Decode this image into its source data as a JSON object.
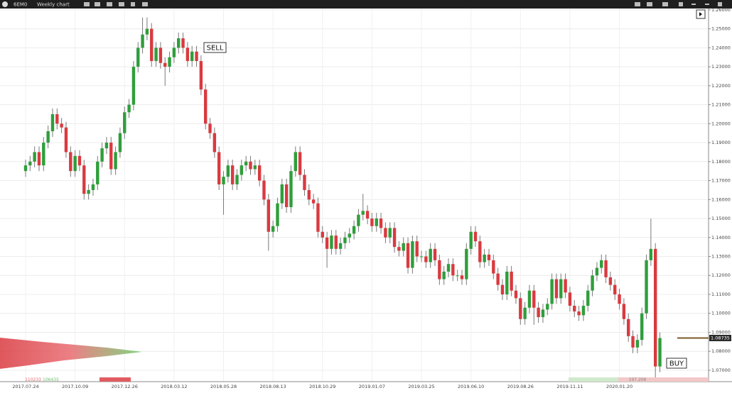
{
  "toolbar": {
    "symbol": "6EM0",
    "timeframe": "Weekly chart"
  },
  "chart_data": {
    "type": "candlestick",
    "categories": [
      "2017.07.24",
      null,
      null,
      null,
      null,
      null,
      null,
      null,
      null,
      null,
      null,
      "2017.10.09",
      null,
      null,
      null,
      null,
      null,
      null,
      null,
      null,
      null,
      null,
      "2017.12.26",
      null,
      null,
      null,
      null,
      null,
      null,
      null,
      null,
      null,
      null,
      "2018.03.12",
      null,
      null,
      null,
      null,
      null,
      null,
      null,
      null,
      null,
      null,
      "2018.05.28",
      null,
      null,
      null,
      null,
      null,
      null,
      null,
      null,
      null,
      null,
      "2018.08.13",
      null,
      null,
      null,
      null,
      null,
      null,
      null,
      null,
      null,
      null,
      "2018.10.29",
      null,
      null,
      null,
      null,
      null,
      null,
      null,
      null,
      null,
      null,
      "2019.01.07",
      null,
      null,
      null,
      null,
      null,
      null,
      null,
      null,
      null,
      null,
      "2019.03.25",
      null,
      null,
      null,
      null,
      null,
      null,
      null,
      null,
      null,
      null,
      "2019.06.10",
      null,
      null,
      null,
      null,
      null,
      null,
      null,
      null,
      null,
      null,
      "2019.08.26",
      null,
      null,
      null,
      null,
      null,
      null,
      null,
      null,
      null,
      null,
      "2019.11.11",
      null,
      null,
      null,
      null,
      null,
      null,
      null,
      null,
      null,
      null,
      "2020.01.20",
      null,
      null,
      null,
      null,
      null,
      null,
      null,
      null,
      null
    ],
    "open": [
      1.175,
      1.178,
      1.18,
      1.185,
      1.178,
      1.19,
      1.196,
      1.205,
      1.2,
      1.198,
      1.185,
      1.175,
      1.183,
      1.178,
      1.163,
      1.165,
      1.168,
      1.18,
      1.187,
      1.19,
      1.176,
      1.185,
      1.195,
      1.206,
      1.21,
      1.23,
      1.24,
      1.247,
      1.25,
      1.233,
      1.24,
      1.232,
      1.23,
      1.235,
      1.24,
      1.245,
      1.24,
      1.233,
      1.238,
      1.233,
      1.218,
      1.2,
      1.195,
      1.185,
      1.168,
      1.172,
      1.178,
      1.168,
      1.173,
      1.178,
      1.18,
      1.176,
      1.178,
      1.17,
      1.16,
      1.143,
      1.146,
      1.158,
      1.168,
      1.156,
      1.175,
      1.185,
      1.173,
      1.165,
      1.16,
      1.158,
      1.143,
      1.14,
      1.134,
      1.141,
      1.134,
      1.137,
      1.14,
      1.142,
      1.146,
      1.152,
      1.154,
      1.15,
      1.146,
      1.15,
      1.145,
      1.14,
      1.145,
      1.135,
      1.133,
      1.137,
      1.124,
      1.138,
      1.13,
      1.13,
      1.127,
      1.134,
      1.128,
      1.118,
      1.122,
      1.126,
      1.12,
      1.12,
      1.118,
      1.134,
      1.143,
      1.138,
      1.127,
      1.131,
      1.128,
      1.121,
      1.115,
      1.11,
      1.122,
      1.112,
      1.108,
      1.097,
      1.103,
      1.112,
      1.103,
      1.098,
      1.102,
      1.105,
      1.118,
      1.108,
      1.118,
      1.111,
      1.104,
      1.101,
      1.099,
      1.104,
      1.112,
      1.12,
      1.124,
      1.128,
      1.119,
      1.115,
      1.11,
      1.105,
      1.097,
      1.088,
      1.082,
      1.086,
      1.1,
      1.128,
      1.134,
      1.072
    ],
    "high": [
      1.181,
      1.183,
      1.188,
      1.188,
      1.193,
      1.199,
      1.208,
      1.208,
      1.203,
      1.201,
      1.188,
      1.186,
      1.186,
      1.181,
      1.168,
      1.171,
      1.183,
      1.19,
      1.193,
      1.193,
      1.188,
      1.198,
      1.209,
      1.213,
      1.233,
      1.243,
      1.256,
      1.256,
      1.253,
      1.243,
      1.243,
      1.235,
      1.238,
      1.243,
      1.248,
      1.248,
      1.243,
      1.241,
      1.241,
      1.236,
      1.221,
      1.203,
      1.198,
      1.188,
      1.175,
      1.181,
      1.181,
      1.176,
      1.181,
      1.183,
      1.183,
      1.181,
      1.181,
      1.173,
      1.163,
      1.149,
      1.161,
      1.171,
      1.171,
      1.178,
      1.188,
      1.188,
      1.176,
      1.168,
      1.163,
      1.161,
      1.146,
      1.143,
      1.144,
      1.144,
      1.14,
      1.143,
      1.145,
      1.149,
      1.155,
      1.163,
      1.157,
      1.153,
      1.153,
      1.153,
      1.148,
      1.148,
      1.148,
      1.138,
      1.14,
      1.14,
      1.141,
      1.141,
      1.133,
      1.133,
      1.137,
      1.137,
      1.131,
      1.125,
      1.129,
      1.129,
      1.123,
      1.123,
      1.137,
      1.146,
      1.146,
      1.141,
      1.134,
      1.134,
      1.131,
      1.124,
      1.118,
      1.125,
      1.125,
      1.115,
      1.111,
      1.106,
      1.115,
      1.115,
      1.106,
      1.105,
      1.108,
      1.121,
      1.121,
      1.121,
      1.121,
      1.114,
      1.107,
      1.104,
      1.107,
      1.115,
      1.123,
      1.127,
      1.131,
      1.131,
      1.122,
      1.118,
      1.113,
      1.108,
      1.1,
      1.091,
      1.089,
      1.103,
      1.131,
      1.15,
      1.137,
      1.09
    ],
    "low": [
      1.172,
      1.175,
      1.177,
      1.175,
      1.175,
      1.187,
      1.193,
      1.197,
      1.195,
      1.182,
      1.172,
      1.172,
      1.175,
      1.16,
      1.16,
      1.162,
      1.165,
      1.177,
      1.184,
      1.173,
      1.173,
      1.182,
      1.192,
      1.203,
      1.207,
      1.227,
      1.237,
      1.244,
      1.23,
      1.23,
      1.229,
      1.22,
      1.227,
      1.232,
      1.237,
      1.237,
      1.23,
      1.23,
      1.23,
      1.215,
      1.197,
      1.192,
      1.182,
      1.165,
      1.152,
      1.169,
      1.165,
      1.165,
      1.17,
      1.175,
      1.173,
      1.173,
      1.167,
      1.157,
      1.133,
      1.14,
      1.143,
      1.155,
      1.153,
      1.153,
      1.172,
      1.17,
      1.162,
      1.157,
      1.155,
      1.14,
      1.137,
      1.124,
      1.131,
      1.131,
      1.131,
      1.134,
      1.137,
      1.139,
      1.143,
      1.149,
      1.147,
      1.143,
      1.143,
      1.142,
      1.137,
      1.137,
      1.132,
      1.13,
      1.13,
      1.121,
      1.121,
      1.127,
      1.127,
      1.124,
      1.124,
      1.125,
      1.115,
      1.115,
      1.119,
      1.117,
      1.117,
      1.115,
      1.115,
      1.131,
      1.135,
      1.124,
      1.124,
      1.125,
      1.118,
      1.112,
      1.107,
      1.107,
      1.109,
      1.105,
      1.094,
      1.094,
      1.1,
      1.094,
      1.095,
      1.095,
      1.099,
      1.102,
      1.105,
      1.105,
      1.108,
      1.101,
      1.098,
      1.096,
      1.096,
      1.101,
      1.109,
      1.117,
      1.121,
      1.116,
      1.112,
      1.107,
      1.102,
      1.094,
      1.085,
      1.079,
      1.079,
      1.083,
      1.097,
      1.125,
      1.066,
      1.069
    ],
    "close": [
      1.178,
      1.18,
      1.185,
      1.178,
      1.19,
      1.196,
      1.205,
      1.2,
      1.198,
      1.185,
      1.175,
      1.183,
      1.178,
      1.163,
      1.165,
      1.168,
      1.18,
      1.187,
      1.19,
      1.176,
      1.185,
      1.195,
      1.206,
      1.21,
      1.23,
      1.24,
      1.247,
      1.25,
      1.233,
      1.24,
      1.232,
      1.23,
      1.235,
      1.24,
      1.245,
      1.24,
      1.233,
      1.238,
      1.233,
      1.218,
      1.2,
      1.195,
      1.185,
      1.168,
      1.172,
      1.178,
      1.168,
      1.173,
      1.178,
      1.18,
      1.176,
      1.178,
      1.17,
      1.16,
      1.143,
      1.146,
      1.158,
      1.168,
      1.156,
      1.175,
      1.185,
      1.173,
      1.165,
      1.16,
      1.158,
      1.143,
      1.14,
      1.134,
      1.141,
      1.134,
      1.137,
      1.14,
      1.142,
      1.146,
      1.152,
      1.154,
      1.15,
      1.146,
      1.15,
      1.145,
      1.14,
      1.145,
      1.135,
      1.133,
      1.137,
      1.124,
      1.138,
      1.13,
      1.13,
      1.127,
      1.134,
      1.128,
      1.118,
      1.122,
      1.126,
      1.12,
      1.12,
      1.118,
      1.134,
      1.143,
      1.138,
      1.127,
      1.131,
      1.128,
      1.121,
      1.115,
      1.11,
      1.122,
      1.112,
      1.108,
      1.097,
      1.103,
      1.112,
      1.103,
      1.098,
      1.102,
      1.105,
      1.118,
      1.108,
      1.118,
      1.111,
      1.104,
      1.101,
      1.099,
      1.104,
      1.112,
      1.12,
      1.124,
      1.128,
      1.119,
      1.115,
      1.11,
      1.105,
      1.097,
      1.088,
      1.082,
      1.086,
      1.1,
      1.128,
      1.134,
      1.072,
      1.087
    ],
    "up_color": "#2f9e3b",
    "down_color": "#d93a40",
    "ylim": [
      1.064,
      1.2607
    ],
    "yticks": [
      {
        "value": 1.07,
        "label": "1.07000"
      },
      {
        "value": 1.08,
        "label": "1.08000"
      },
      {
        "value": 1.09,
        "label": "1.09000"
      },
      {
        "value": 1.1,
        "label": "1.10000"
      },
      {
        "value": 1.11,
        "label": "1.11000"
      },
      {
        "value": 1.12,
        "label": "1.12000"
      },
      {
        "value": 1.13,
        "label": "1.13000"
      },
      {
        "value": 1.14,
        "label": "1.14000"
      },
      {
        "value": 1.15,
        "label": "1.15000"
      },
      {
        "value": 1.16,
        "label": "1.16000"
      },
      {
        "value": 1.17,
        "label": "1.17000"
      },
      {
        "value": 1.18,
        "label": "1.18000"
      },
      {
        "value": 1.19,
        "label": "1.19000"
      },
      {
        "value": 1.2,
        "label": "1.20000"
      },
      {
        "value": 1.21,
        "label": "1.21000"
      },
      {
        "value": 1.22,
        "label": "1.22000"
      },
      {
        "value": 1.23,
        "label": "1.23000"
      },
      {
        "value": 1.24,
        "label": "1.24000"
      },
      {
        "value": 1.25,
        "label": "1.25000"
      },
      {
        "value": 1.26,
        "label": "1.26000"
      }
    ],
    "grid": true,
    "annotations": [
      "SELL",
      "BUY"
    ],
    "price_label": "1.08735",
    "profile_labels": [
      "110233",
      "106435"
    ],
    "volume_label": "197.206"
  }
}
